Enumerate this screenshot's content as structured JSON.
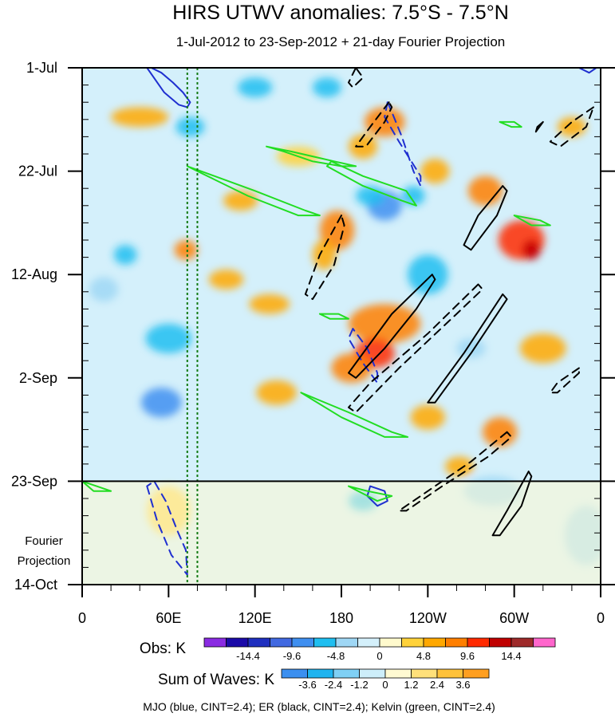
{
  "chart_data": {
    "type": "heatmap",
    "title": "HIRS UTWV anomalies: 7.5°S - 7.5°N",
    "subtitle": "1-Jul-2012 to 23-Sep-2012 + 21-day Fourier Projection",
    "x_axis": {
      "ticks": [
        "0",
        "60E",
        "120E",
        "180",
        "120W",
        "60W",
        "0"
      ],
      "range_deg_east": [
        0,
        360
      ]
    },
    "y_axis": {
      "ticks": [
        "1-Jul",
        "22-Jul",
        "12-Aug",
        "2-Sep",
        "23-Sep",
        "14-Oct"
      ],
      "range_days": [
        0,
        105
      ],
      "projection_label": [
        "Fourier",
        "Projection"
      ]
    },
    "projection_start_day": 84,
    "mjo_lines_lon": [
      73,
      80
    ],
    "obs_colorbar": {
      "label": "Obs: K",
      "levels": [
        "-14.4",
        "-9.6",
        "-4.8",
        "0",
        "4.8",
        "9.6",
        "14.4"
      ],
      "colors": [
        "#8a2be2",
        "#1a0aa8",
        "#1f2fbf",
        "#4169e1",
        "#3f8ff0",
        "#1fbef0",
        "#9fd7f5",
        "#d4f0fb",
        "#fffacd",
        "#ffd23a",
        "#ffa800",
        "#ff7f00",
        "#ff2a00",
        "#c00000",
        "#9e2a2a",
        "#ff66cc"
      ]
    },
    "wave_colorbar": {
      "label": "Sum of Waves: K",
      "levels": [
        "-3.6",
        "-2.4",
        "-1.2",
        "0",
        "1.2",
        "2.4",
        "3.6"
      ],
      "colors": [
        "#3b8ff0",
        "#1fb4f0",
        "#7fd0f5",
        "#cdeefa",
        "#fffad2",
        "#ffe07a",
        "#ffc23a",
        "#ff9f20"
      ]
    },
    "legend_note": "MJO (blue, CINT=2.4); ER (black, CINT=2.4); Kelvin (green, CINT=2.4)",
    "anomaly_blobs": [
      {
        "lon": 210,
        "day": 11,
        "rx": 14,
        "rd": 3,
        "v": 6
      },
      {
        "lon": 195,
        "day": 16,
        "rx": 10,
        "rd": 2.5,
        "v": 5
      },
      {
        "lon": 280,
        "day": 25,
        "rx": 12,
        "rd": 3,
        "v": 7
      },
      {
        "lon": 245,
        "day": 21,
        "rx": 10,
        "rd": 2.5,
        "v": 4
      },
      {
        "lon": 305,
        "day": 35,
        "rx": 16,
        "rd": 4,
        "v": 9
      },
      {
        "lon": 312,
        "day": 37,
        "rx": 6,
        "rd": 2,
        "v": 12
      },
      {
        "lon": 177,
        "day": 33,
        "rx": 12,
        "rd": 4,
        "v": 6
      },
      {
        "lon": 168,
        "day": 38,
        "rx": 8,
        "rd": 3,
        "v": 5
      },
      {
        "lon": 210,
        "day": 52,
        "rx": 25,
        "rd": 4,
        "v": 6
      },
      {
        "lon": 203,
        "day": 58,
        "rx": 14,
        "rd": 3,
        "v": 9
      },
      {
        "lon": 187,
        "day": 61,
        "rx": 14,
        "rd": 3,
        "v": 6
      },
      {
        "lon": 290,
        "day": 74,
        "rx": 12,
        "rd": 3,
        "v": 8
      },
      {
        "lon": 240,
        "day": 71,
        "rx": 12,
        "rd": 2.5,
        "v": 5
      },
      {
        "lon": 262,
        "day": 81,
        "rx": 10,
        "rd": 2,
        "v": 4
      },
      {
        "lon": 40,
        "day": 10,
        "rx": 20,
        "rd": 2,
        "v": 5
      },
      {
        "lon": 110,
        "day": 27,
        "rx": 12,
        "rd": 2,
        "v": 4
      },
      {
        "lon": 72,
        "day": 37,
        "rx": 8,
        "rd": 2,
        "v": 7
      },
      {
        "lon": 100,
        "day": 43,
        "rx": 12,
        "rd": 2,
        "v": 5
      },
      {
        "lon": 130,
        "day": 48,
        "rx": 14,
        "rd": 2,
        "v": 4
      },
      {
        "lon": 320,
        "day": 57,
        "rx": 16,
        "rd": 3,
        "v": 4
      },
      {
        "lon": 60,
        "day": 90,
        "rx": 15,
        "rd": 5,
        "v": 3
      },
      {
        "lon": 135,
        "day": 66,
        "rx": 14,
        "rd": 2.5,
        "v": 4
      },
      {
        "lon": 150,
        "day": 18,
        "rx": 15,
        "rd": 2,
        "v": 3
      },
      {
        "lon": 340,
        "day": 12,
        "rx": 10,
        "rd": 2,
        "v": 4
      },
      {
        "lon": 210,
        "day": 28,
        "rx": 12,
        "rd": 3,
        "v": -7
      },
      {
        "lon": 230,
        "day": 26,
        "rx": 8,
        "rd": 2,
        "v": -6
      },
      {
        "lon": 200,
        "day": 26,
        "rx": 10,
        "rd": 2,
        "v": -6
      },
      {
        "lon": 240,
        "day": 42,
        "rx": 14,
        "rd": 4,
        "v": -5
      },
      {
        "lon": 60,
        "day": 55,
        "rx": 16,
        "rd": 3,
        "v": -6
      },
      {
        "lon": 55,
        "day": 68,
        "rx": 14,
        "rd": 3,
        "v": -7
      },
      {
        "lon": 75,
        "day": 12,
        "rx": 10,
        "rd": 2,
        "v": -4
      },
      {
        "lon": 270,
        "day": 57,
        "rx": 10,
        "rd": 2,
        "v": -3
      },
      {
        "lon": 15,
        "day": 45,
        "rx": 10,
        "rd": 2.5,
        "v": -3
      },
      {
        "lon": 195,
        "day": 88,
        "rx": 10,
        "rd": 2,
        "v": -4
      },
      {
        "lon": 120,
        "day": 4,
        "rx": 12,
        "rd": 2,
        "v": -4
      },
      {
        "lon": 30,
        "day": 38,
        "rx": 8,
        "rd": 2,
        "v": -4
      },
      {
        "lon": 170,
        "day": 4,
        "rx": 10,
        "rd": 2,
        "v": -4
      },
      {
        "lon": 285,
        "day": 86,
        "rx": 20,
        "rd": 3,
        "v": -2
      },
      {
        "lon": 350,
        "day": 95,
        "rx": 15,
        "rd": 6,
        "v": -2
      }
    ],
    "contours": [
      {
        "wave": "MJO",
        "sign": "pos",
        "pts": [
          [
            45,
            0
          ],
          [
            57,
            5
          ],
          [
            67,
            7.5
          ],
          [
            73,
            8
          ],
          [
            75,
            7
          ],
          [
            70,
            5
          ],
          [
            63,
            3
          ],
          [
            55,
            1
          ],
          [
            48,
            0
          ]
        ]
      },
      {
        "wave": "MJO",
        "sign": "pos",
        "pts": [
          [
            345,
            0
          ],
          [
            352,
            1
          ],
          [
            357,
            0
          ]
        ]
      },
      {
        "wave": "MJO",
        "sign": "neg",
        "pts": [
          [
            212,
            7
          ],
          [
            210,
            10
          ],
          [
            220,
            15
          ],
          [
            235,
            22
          ],
          [
            235,
            24
          ],
          [
            230,
            21
          ],
          [
            222,
            14
          ],
          [
            215,
            9
          ],
          [
            212,
            7
          ]
        ]
      },
      {
        "wave": "MJO",
        "sign": "neg",
        "pts": [
          [
            188,
            53
          ],
          [
            185,
            55
          ],
          [
            195,
            60
          ],
          [
            205,
            64
          ],
          [
            205,
            62
          ],
          [
            198,
            57
          ],
          [
            188,
            53
          ]
        ]
      },
      {
        "wave": "MJO",
        "sign": "neg",
        "pts": [
          [
            45,
            85
          ],
          [
            52,
            92
          ],
          [
            62,
            99
          ],
          [
            73,
            103
          ],
          [
            72,
            98
          ],
          [
            66,
            94
          ],
          [
            58,
            88
          ],
          [
            50,
            84
          ],
          [
            45,
            85
          ]
        ]
      },
      {
        "wave": "MJO",
        "sign": "pos",
        "pts": [
          [
            200,
            85
          ],
          [
            198,
            87
          ],
          [
            205,
            89
          ],
          [
            212,
            88
          ],
          [
            210,
            86
          ],
          [
            200,
            85
          ]
        ]
      },
      {
        "wave": "ER",
        "sign": "neg",
        "pts": [
          [
            190,
            0
          ],
          [
            185,
            3
          ],
          [
            188,
            4
          ],
          [
            195,
            2
          ],
          [
            190,
            0
          ]
        ]
      },
      {
        "wave": "ER",
        "sign": "neg",
        "pts": [
          [
            213,
            7
          ],
          [
            200,
            12
          ],
          [
            190,
            16
          ],
          [
            197,
            16
          ],
          [
            210,
            11
          ],
          [
            215,
            8
          ],
          [
            213,
            7
          ]
        ]
      },
      {
        "wave": "ER",
        "sign": "neg",
        "pts": [
          [
            355,
            8
          ],
          [
            340,
            11
          ],
          [
            325,
            15
          ],
          [
            332,
            16
          ],
          [
            350,
            12
          ],
          [
            355,
            8
          ]
        ]
      },
      {
        "wave": "ER",
        "sign": "pos",
        "pts": [
          [
            320,
            11
          ],
          [
            315,
            13
          ],
          [
            316,
            12
          ],
          [
            320,
            11
          ]
        ]
      },
      {
        "wave": "ER",
        "sign": "pos",
        "pts": [
          [
            292,
            24
          ],
          [
            275,
            30
          ],
          [
            265,
            36
          ],
          [
            270,
            37
          ],
          [
            288,
            30
          ],
          [
            295,
            25
          ],
          [
            292,
            24
          ]
        ]
      },
      {
        "wave": "ER",
        "sign": "neg",
        "pts": [
          [
            180,
            30
          ],
          [
            165,
            38
          ],
          [
            155,
            46
          ],
          [
            160,
            47
          ],
          [
            175,
            40
          ],
          [
            182,
            32
          ],
          [
            180,
            30
          ]
        ]
      },
      {
        "wave": "ER",
        "sign": "pos",
        "pts": [
          [
            243,
            42
          ],
          [
            215,
            50
          ],
          [
            195,
            58
          ],
          [
            185,
            62
          ],
          [
            190,
            63
          ],
          [
            210,
            57
          ],
          [
            232,
            49
          ],
          [
            245,
            43
          ],
          [
            243,
            42
          ]
        ]
      },
      {
        "wave": "ER",
        "sign": "neg",
        "pts": [
          [
            275,
            44
          ],
          [
            240,
            54
          ],
          [
            200,
            64
          ],
          [
            185,
            69
          ],
          [
            190,
            70
          ],
          [
            220,
            61
          ],
          [
            260,
            50
          ],
          [
            278,
            45
          ],
          [
            275,
            44
          ]
        ]
      },
      {
        "wave": "ER",
        "sign": "pos",
        "pts": [
          [
            292,
            46
          ],
          [
            265,
            58
          ],
          [
            240,
            68
          ],
          [
            245,
            68
          ],
          [
            270,
            58
          ],
          [
            295,
            47
          ],
          [
            292,
            46
          ]
        ]
      },
      {
        "wave": "ER",
        "sign": "neg",
        "pts": [
          [
            345,
            61
          ],
          [
            330,
            64
          ],
          [
            325,
            66
          ],
          [
            330,
            66
          ],
          [
            345,
            62
          ],
          [
            345,
            61
          ]
        ]
      },
      {
        "wave": "ER",
        "sign": "neg",
        "pts": [
          [
            295,
            74
          ],
          [
            270,
            80
          ],
          [
            235,
            87
          ],
          [
            220,
            90
          ],
          [
            225,
            90
          ],
          [
            250,
            85
          ],
          [
            282,
            79
          ],
          [
            298,
            75
          ],
          [
            295,
            74
          ]
        ]
      },
      {
        "wave": "ER",
        "sign": "pos",
        "pts": [
          [
            310,
            82
          ],
          [
            295,
            90
          ],
          [
            285,
            95
          ],
          [
            290,
            95
          ],
          [
            305,
            89
          ],
          [
            312,
            83
          ],
          [
            310,
            82
          ]
        ]
      },
      {
        "wave": "Kelvin",
        "sign": "pos",
        "pts": [
          [
            128,
            16
          ],
          [
            145,
            17
          ],
          [
            175,
            19
          ],
          [
            190,
            20
          ],
          [
            180,
            20
          ],
          [
            160,
            19
          ],
          [
            140,
            17
          ],
          [
            128,
            16
          ]
        ]
      },
      {
        "wave": "Kelvin",
        "sign": "pos",
        "pts": [
          [
            73,
            20
          ],
          [
            120,
            25
          ],
          [
            155,
            29
          ],
          [
            165,
            30
          ],
          [
            150,
            30
          ],
          [
            115,
            26
          ],
          [
            80,
            21
          ],
          [
            73,
            20
          ]
        ]
      },
      {
        "wave": "Kelvin",
        "sign": "pos",
        "pts": [
          [
            173,
            19
          ],
          [
            195,
            22
          ],
          [
            225,
            25
          ],
          [
            232,
            28
          ],
          [
            222,
            27
          ],
          [
            195,
            24
          ],
          [
            170,
            20
          ],
          [
            173,
            19
          ]
        ]
      },
      {
        "wave": "Kelvin",
        "sign": "pos",
        "pts": [
          [
            290,
            11
          ],
          [
            300,
            11
          ],
          [
            305,
            12
          ],
          [
            298,
            12
          ],
          [
            290,
            11
          ]
        ]
      },
      {
        "wave": "Kelvin",
        "sign": "pos",
        "pts": [
          [
            300,
            30
          ],
          [
            318,
            31
          ],
          [
            325,
            32
          ],
          [
            312,
            32
          ],
          [
            300,
            30
          ]
        ]
      },
      {
        "wave": "Kelvin",
        "sign": "pos",
        "pts": [
          [
            165,
            50
          ],
          [
            178,
            50
          ],
          [
            185,
            51
          ],
          [
            172,
            51
          ],
          [
            165,
            50
          ]
        ]
      },
      {
        "wave": "Kelvin",
        "sign": "pos",
        "pts": [
          [
            152,
            66
          ],
          [
            185,
            70
          ],
          [
            215,
            74
          ],
          [
            226,
            75
          ],
          [
            210,
            75
          ],
          [
            180,
            71
          ],
          [
            152,
            66
          ]
        ]
      },
      {
        "wave": "Kelvin",
        "sign": "pos",
        "pts": [
          [
            0,
            84
          ],
          [
            10,
            85
          ],
          [
            20,
            86
          ],
          [
            8,
            86
          ],
          [
            0,
            84
          ]
        ]
      },
      {
        "wave": "Kelvin",
        "sign": "pos",
        "pts": [
          [
            185,
            85
          ],
          [
            198,
            86
          ],
          [
            215,
            87
          ],
          [
            205,
            88
          ],
          [
            185,
            85
          ]
        ]
      }
    ]
  }
}
